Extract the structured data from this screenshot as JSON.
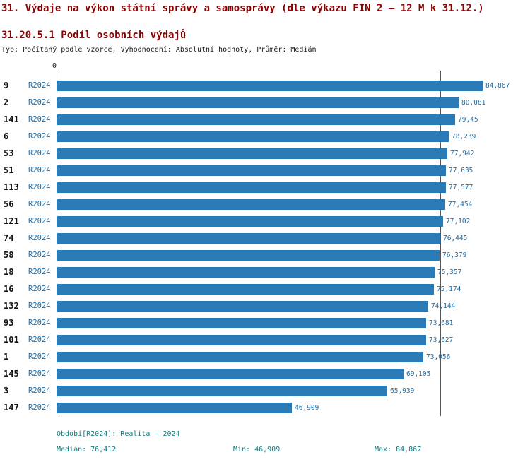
{
  "title": "31. Výdaje na výkon státní správy a samosprávy (dle výkazu FIN 2 – 12 M k 31.12.)",
  "subtitle": "31.20.5.1 Podíl osobních výdajů",
  "meta": "Typ: Počítaný podle vzorce, Vyhodnocení: Absolutní hodnoty, Průměr: Medián",
  "chart_data": {
    "type": "bar",
    "orientation": "horizontal",
    "title": "31.20.5.1 Podíl osobních výdajů",
    "categories": [
      "9",
      "2",
      "141",
      "6",
      "53",
      "51",
      "113",
      "56",
      "121",
      "74",
      "58",
      "18",
      "16",
      "132",
      "93",
      "101",
      "1",
      "145",
      "3",
      "147"
    ],
    "series_label": "R2024",
    "values": [
      84.867,
      80.081,
      79.45,
      78.239,
      77.942,
      77.635,
      77.577,
      77.454,
      77.102,
      76.445,
      76.379,
      75.357,
      75.174,
      74.144,
      73.681,
      73.627,
      73.056,
      69.105,
      65.939,
      46.909
    ],
    "value_labels": [
      "84,867",
      "80,081",
      "79,45",
      "78,239",
      "77,942",
      "77,635",
      "77,577",
      "77,454",
      "77,102",
      "76,445",
      "76,379",
      "75,357",
      "75,174",
      "74,144",
      "73,681",
      "73,627",
      "73,056",
      "69,105",
      "65,939",
      "46,909"
    ],
    "axis_zero_label": "0",
    "xlim": [
      0,
      90
    ],
    "median_line": 76.412,
    "grid": false,
    "legend_position": "none",
    "bar_color": "#2a7ab5",
    "value_color": "#1a6fae",
    "series_color": "#1a6fae"
  },
  "footer": {
    "period": "Období[R2024]: Realita – 2024",
    "median": "Medián: 76,412",
    "min": "Min: 46,909",
    "max": "Max: 84,867"
  }
}
